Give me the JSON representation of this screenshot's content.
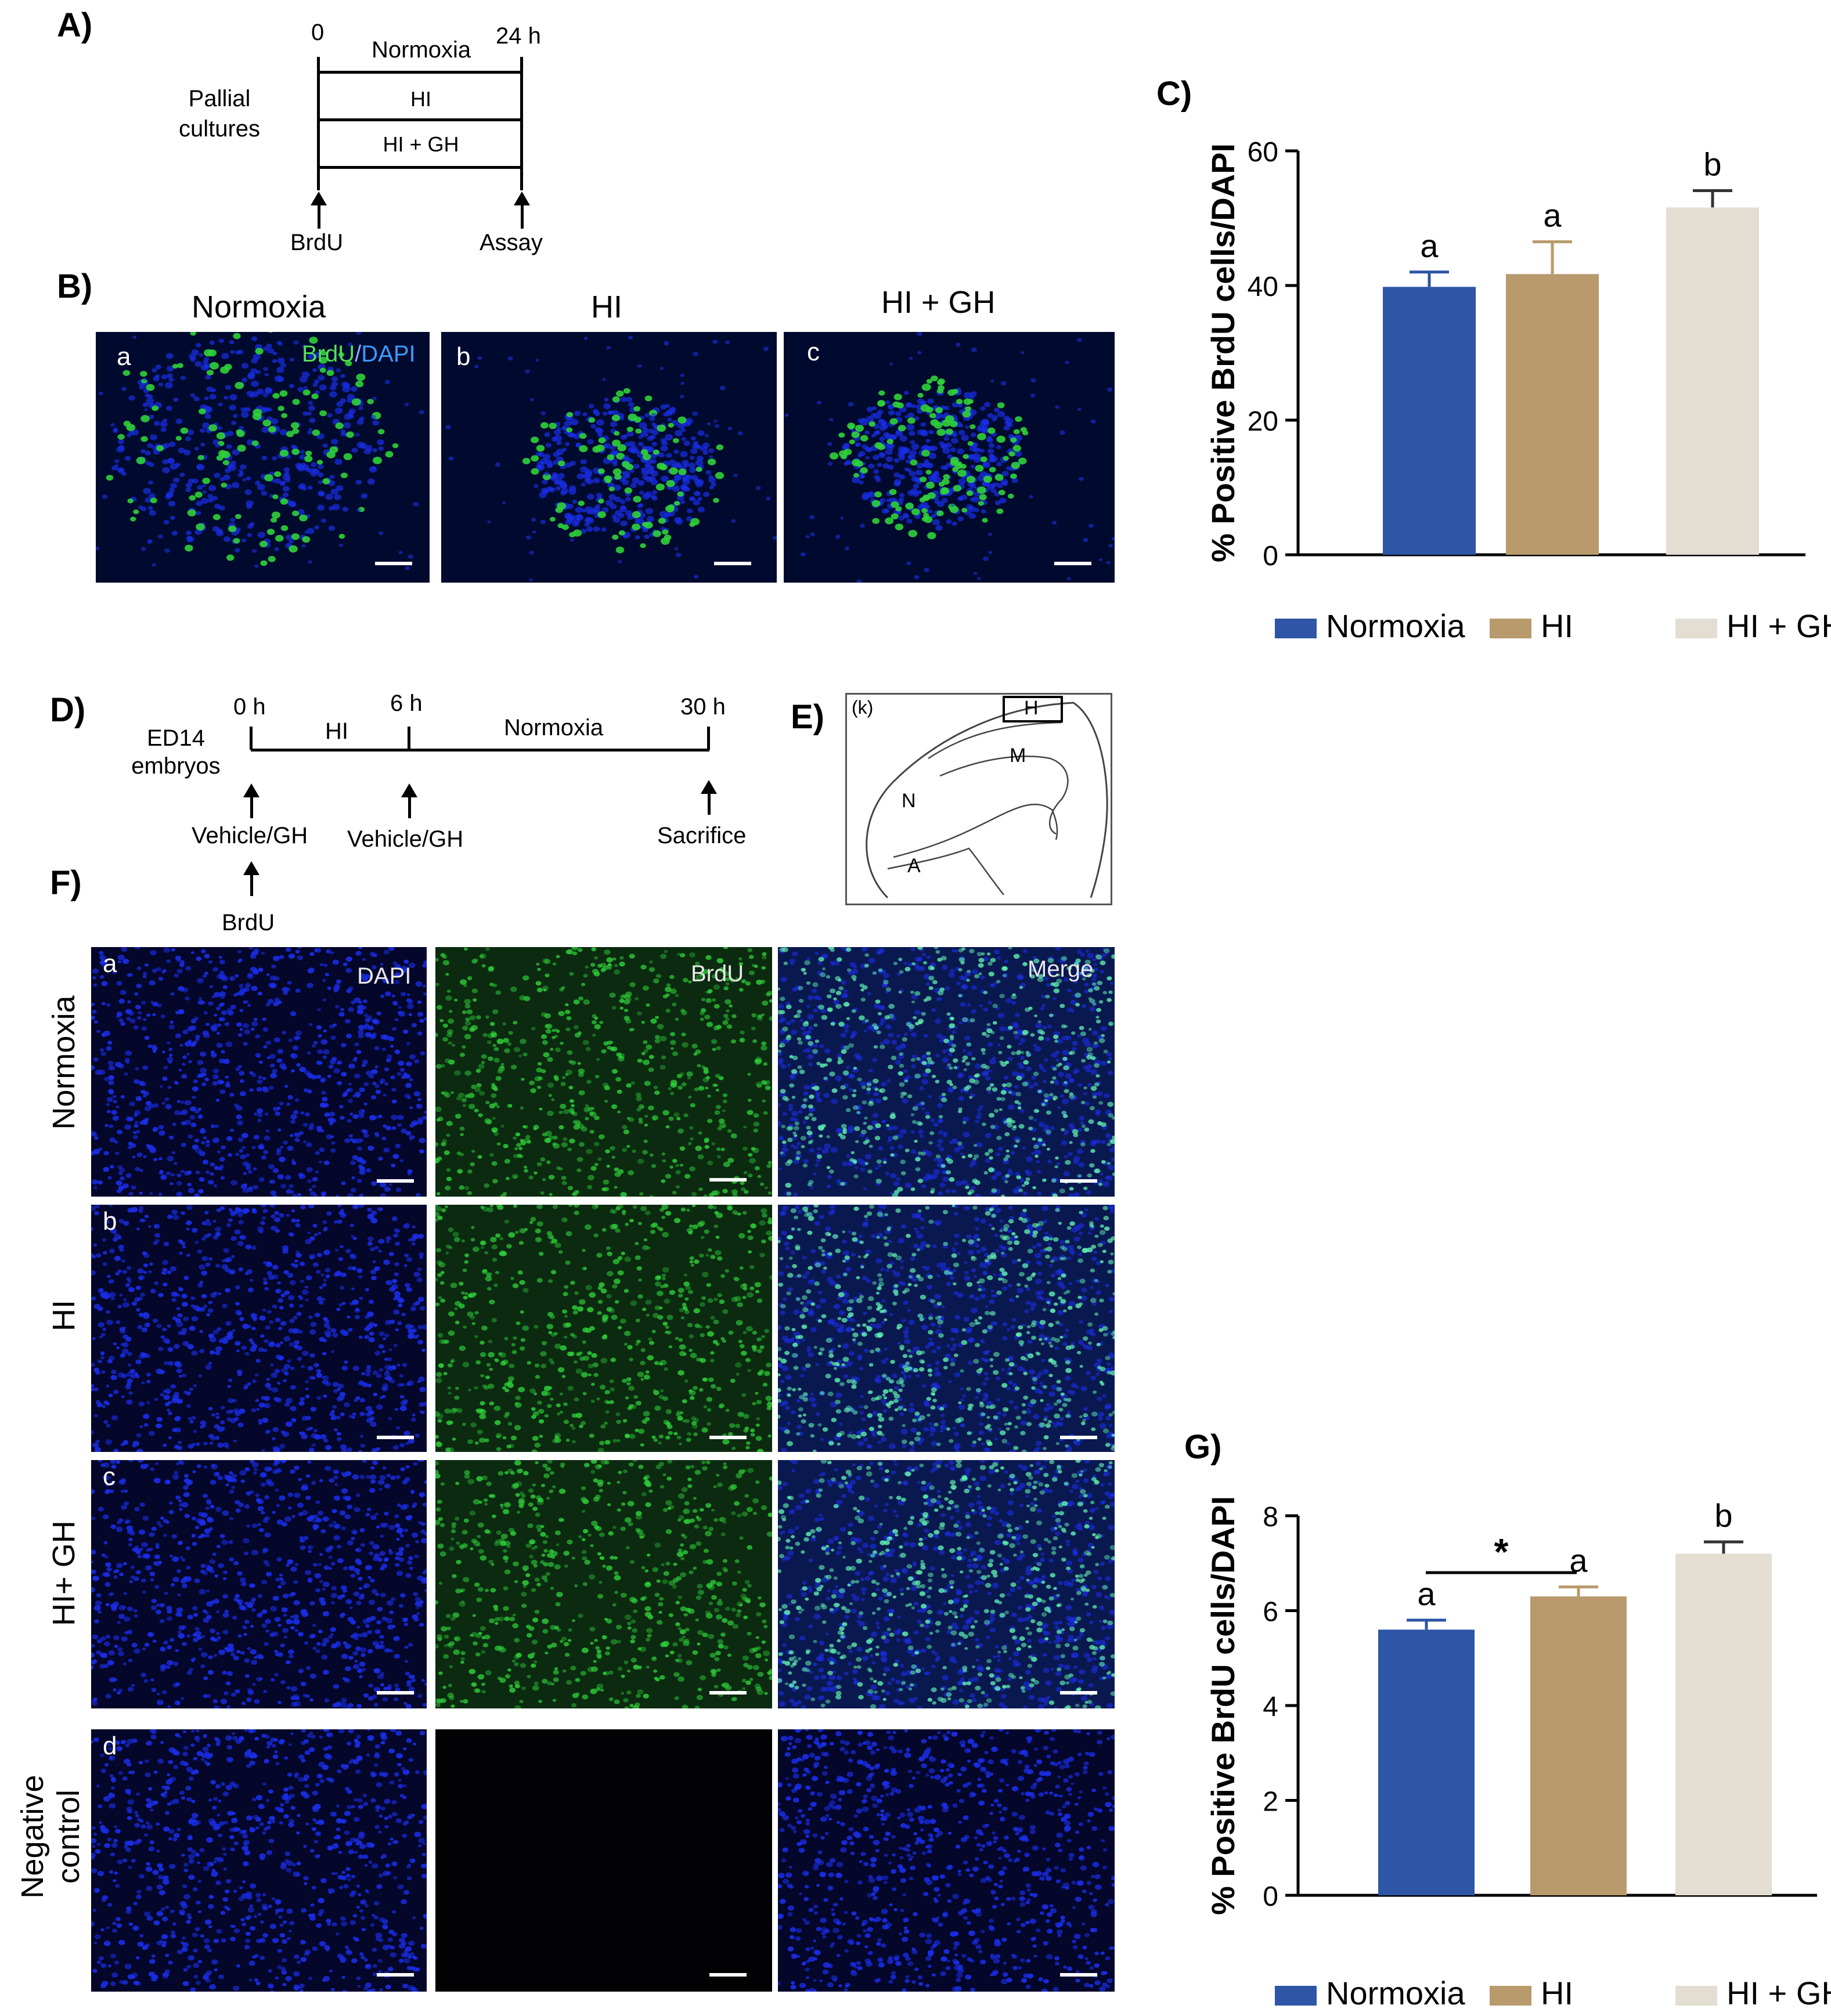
{
  "panel_labels": {
    "A": "A)",
    "B": "B)",
    "C": "C)",
    "D": "D)",
    "E": "E)",
    "F": "F)",
    "G": "G)"
  },
  "panelA": {
    "row_label_line1": "Pallial",
    "row_label_line2": "cultures",
    "t_start": "0",
    "t_end": "24 h",
    "conditions": [
      "Normoxia",
      "HI",
      "HI + GH"
    ],
    "arrow_left": "BrdU",
    "arrow_right": "Assay"
  },
  "panelB": {
    "titles": [
      "Normoxia",
      "HI",
      "HI + GH"
    ],
    "letters": [
      "a",
      "b",
      "c"
    ],
    "stain_brdu": "BrdU",
    "stain_sep": "/",
    "stain_dapi": "DAPI"
  },
  "panelD": {
    "row_label_line1": "ED14",
    "row_label_line2": "embryos",
    "t0": "0 h",
    "t6": "6 h",
    "t30": "30 h",
    "seg1": "HI",
    "seg2": "Normoxia",
    "arrow1": "Vehicle/GH",
    "arrow2": "Vehicle/GH",
    "arrow3": "Sacrifice",
    "arrow_below": "BrdU"
  },
  "panelE": {
    "corner": "(k)",
    "regions": [
      "H",
      "M",
      "N",
      "A"
    ]
  },
  "panelF": {
    "letters": [
      "a",
      "b",
      "c",
      "d"
    ],
    "row_labels": [
      "Normoxia",
      "HI",
      "HI+ GH"
    ],
    "row_label_neg_line1": "Negative",
    "row_label_neg_line2": "control",
    "channels": [
      "DAPI",
      "BrdU",
      "Merge"
    ]
  },
  "colors": {
    "normoxia": "#2e55a6",
    "hi": "#b89a6c",
    "high": "#e3ddd2",
    "dapi": "#1a2ee8",
    "brdu": "#2fd13a"
  },
  "chart_data": [
    {
      "type": "bar",
      "panel": "C",
      "categories": [
        "Normoxia",
        "HI",
        "HI + GH"
      ],
      "values": [
        39.8,
        41.7,
        51.6
      ],
      "errors": [
        2.2,
        4.8,
        2.5
      ],
      "significance_letters": [
        "a",
        "a",
        "b"
      ],
      "ylabel": "% Positive BrdU cells/DAPI",
      "ylim": [
        0,
        60
      ],
      "yticks": [
        0,
        20,
        40,
        60
      ],
      "legend": [
        "Normoxia",
        "HI",
        "HI + GH"
      ]
    },
    {
      "type": "bar",
      "panel": "G",
      "categories": [
        "Normoxia",
        "HI",
        "HI + GH"
      ],
      "values": [
        5.6,
        6.3,
        7.2
      ],
      "errors": [
        0.2,
        0.2,
        0.25
      ],
      "significance_letters": [
        "a",
        "a",
        "b"
      ],
      "star": "*",
      "ylabel": "% Positive BrdU cells/DAPI",
      "ylim": [
        0,
        8
      ],
      "yticks": [
        0,
        2,
        4,
        6,
        8
      ],
      "legend": [
        "Normoxia",
        "HI",
        "HI + GH"
      ]
    }
  ]
}
